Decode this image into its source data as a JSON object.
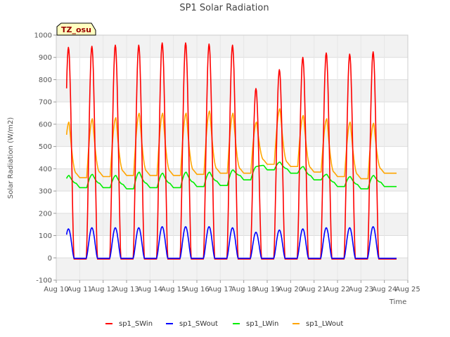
{
  "chart_data": {
    "type": "line",
    "title": "SP1 Solar Radiation",
    "xlabel": "Time",
    "ylabel": "Solar Radiation (W/m2)",
    "ylim": [
      -100,
      1000
    ],
    "yticks": [
      "-100",
      "0",
      "100",
      "200",
      "300",
      "400",
      "500",
      "600",
      "700",
      "800",
      "900",
      "1000"
    ],
    "xlim": [
      10,
      25
    ],
    "xtick_values": [
      10,
      11,
      12,
      13,
      14,
      15,
      16,
      17,
      18,
      19,
      20,
      21,
      22,
      23,
      24,
      25
    ],
    "xticks": [
      "Aug 10",
      "Aug 11",
      "Aug 12",
      "Aug 13",
      "Aug 14",
      "Aug 15",
      "Aug 16",
      "Aug 17",
      "Aug 18",
      "Aug 19",
      "Aug 20",
      "Aug 21",
      "Aug 22",
      "Aug 23",
      "Aug 24",
      "Aug 25"
    ],
    "grid": true,
    "legend_position": "bottom",
    "annotation": "TZ_osu",
    "days": [
      10,
      11,
      12,
      13,
      14,
      15,
      16,
      17,
      18,
      19,
      20,
      21,
      22,
      23,
      24
    ],
    "series": [
      {
        "name": "sp1_SWin",
        "color": "#ff0000",
        "peaks": [
          945,
          950,
          955,
          955,
          965,
          965,
          960,
          955,
          760,
          845,
          900,
          920,
          915,
          925
        ],
        "night": -5
      },
      {
        "name": "sp1_SWout",
        "color": "#0000ff",
        "peaks": [
          130,
          135,
          135,
          135,
          140,
          140,
          140,
          135,
          115,
          125,
          130,
          135,
          135,
          140
        ],
        "night": -2
      },
      {
        "name": "sp1_LWin",
        "color": "#00ee00",
        "peaks": [
          370,
          375,
          370,
          385,
          380,
          385,
          385,
          395,
          410,
          430,
          410,
          375,
          365,
          370
        ],
        "minima": [
          310,
          315,
          315,
          310,
          315,
          315,
          320,
          325,
          350,
          395,
          380,
          350,
          320,
          310,
          320
        ]
      },
      {
        "name": "sp1_LWout",
        "color": "#ffa500",
        "peaks": [
          610,
          625,
          630,
          650,
          650,
          650,
          660,
          650,
          610,
          670,
          640,
          625,
          610,
          605
        ],
        "minima": [
          360,
          360,
          365,
          370,
          370,
          370,
          375,
          380,
          380,
          420,
          410,
          385,
          365,
          355,
          380
        ]
      }
    ]
  }
}
